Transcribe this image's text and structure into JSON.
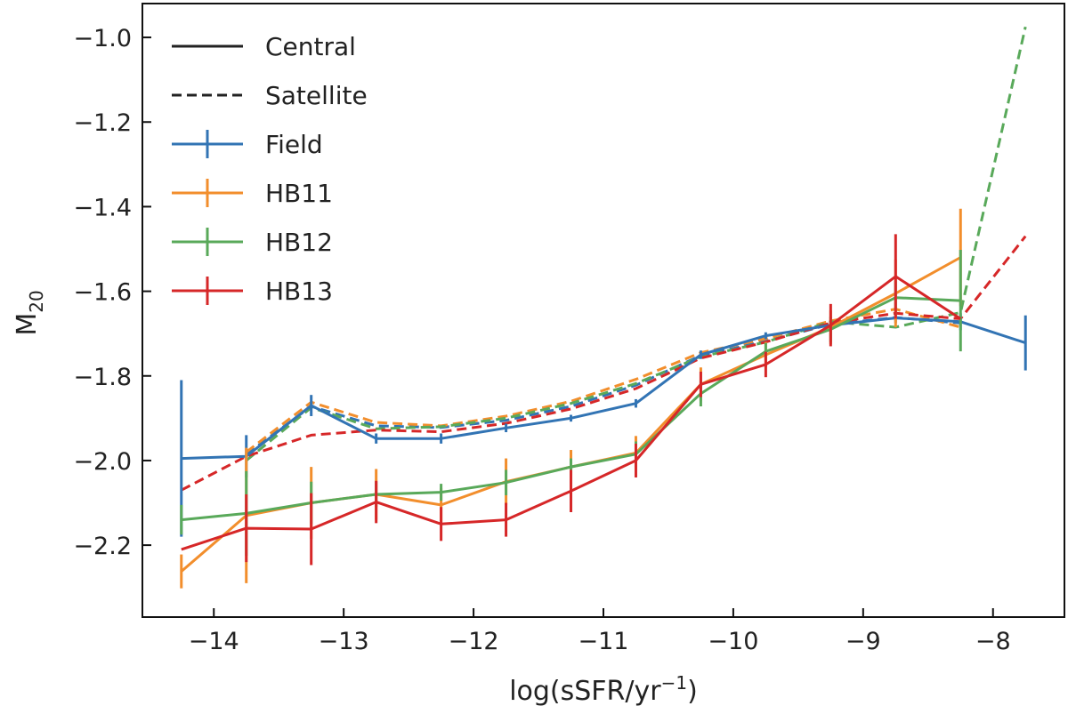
{
  "chart_data": {
    "type": "line",
    "title": "",
    "xlabel": "log(sSFR/yr",
    "xlabel_sup": "−1",
    "xlabel_close": ")",
    "ylabel": "M",
    "ylabel_sub": "20",
    "xlim": [
      -14.55,
      -7.45
    ],
    "ylim": [
      -2.37,
      -0.92
    ],
    "x_ticks": [
      -14,
      -13,
      -12,
      -11,
      -10,
      -9,
      -8
    ],
    "x_tick_labels": [
      "−14",
      "−13",
      "−12",
      "−11",
      "−10",
      "−9",
      "−8"
    ],
    "y_ticks": [
      -2.2,
      -2.0,
      -1.8,
      -1.6,
      -1.4,
      -1.2,
      -1.0
    ],
    "y_tick_labels": [
      "−2.2",
      "−2.0",
      "−1.8",
      "−1.6",
      "−1.4",
      "−1.2",
      "−1.0"
    ],
    "grid": false,
    "legend_position": "top-left",
    "legend": {
      "style_entries": [
        {
          "label": "Central",
          "style": "solid"
        },
        {
          "label": "Satellite",
          "style": "dashed"
        }
      ],
      "series_entries": [
        {
          "label": "Field",
          "color": "#3274b4"
        },
        {
          "label": "HB11",
          "color": "#f28e2c"
        },
        {
          "label": "HB12",
          "color": "#59a95a"
        },
        {
          "label": "HB13",
          "color": "#d62728"
        }
      ]
    },
    "series": [
      {
        "name": "Field",
        "kind": "central",
        "color": "#3274b4",
        "x": [
          -14.25,
          -13.75,
          -13.25,
          -12.75,
          -12.25,
          -11.75,
          -11.25,
          -10.75,
          -10.25,
          -9.75,
          -9.25,
          -8.75,
          -8.25,
          -7.75
        ],
        "y": [
          -1.995,
          -1.99,
          -1.87,
          -1.948,
          -1.948,
          -1.923,
          -1.9,
          -1.865,
          -1.75,
          -1.705,
          -1.68,
          -1.663,
          -1.672,
          -1.722
        ],
        "err": [
          0.185,
          0.05,
          0.025,
          0.012,
          0.012,
          0.01,
          0.008,
          0.01,
          0.01,
          0.008,
          0.01,
          0.012,
          0.02,
          0.065
        ]
      },
      {
        "name": "HB11",
        "kind": "central",
        "color": "#f28e2c",
        "x": [
          -14.25,
          -13.75,
          -13.25,
          -12.75,
          -12.25,
          -11.75,
          -11.25,
          -10.75,
          -10.25,
          -9.75,
          -9.25,
          -8.75,
          -8.25
        ],
        "y": [
          -2.262,
          -2.13,
          -2.1,
          -2.08,
          -2.105,
          -2.05,
          -2.015,
          -1.982,
          -1.82,
          -1.75,
          -1.685,
          -1.605,
          -1.52
        ],
        "err": [
          0.04,
          0.16,
          0.085,
          0.06,
          0.04,
          0.055,
          0.04,
          0.04,
          0.04,
          0.03,
          0.04,
          0.08,
          0.115
        ]
      },
      {
        "name": "HB12",
        "kind": "central",
        "color": "#59a95a",
        "x": [
          -14.25,
          -13.75,
          -13.25,
          -12.75,
          -12.25,
          -11.75,
          -11.25,
          -10.75,
          -10.25,
          -9.75,
          -9.25,
          -8.75,
          -8.25
        ],
        "y": [
          -2.14,
          -2.125,
          -2.1,
          -2.08,
          -2.075,
          -2.052,
          -2.015,
          -1.985,
          -1.842,
          -1.742,
          -1.69,
          -1.615,
          -1.622
        ],
        "err": [
          0.035,
          0.1,
          0.05,
          0.03,
          0.02,
          0.03,
          0.02,
          0.03,
          0.03,
          0.02,
          0.03,
          0.04,
          0.12
        ]
      },
      {
        "name": "HB13",
        "kind": "central",
        "color": "#d62728",
        "x": [
          -14.25,
          -13.75,
          -13.25,
          -12.75,
          -12.25,
          -11.75,
          -11.25,
          -10.75,
          -10.25,
          -9.75,
          -9.25,
          -8.75,
          -8.25
        ],
        "y": [
          -2.21,
          -2.16,
          -2.162,
          -2.098,
          -2.15,
          -2.14,
          -2.072,
          -2.0,
          -1.82,
          -1.773,
          -1.68,
          -1.565,
          -1.665
        ],
        "err": [
          0.0,
          0.08,
          0.085,
          0.05,
          0.04,
          0.04,
          0.05,
          0.04,
          0.03,
          0.03,
          0.05,
          0.1,
          0.0
        ]
      },
      {
        "name": "Field",
        "kind": "satellite",
        "color": "#3274b4",
        "x": [
          -13.75,
          -13.25,
          -12.75,
          -12.25,
          -11.75,
          -11.25,
          -10.75,
          -10.25,
          -9.75,
          -9.25,
          -8.75,
          -8.25
        ],
        "y": [
          -1.985,
          -1.872,
          -1.918,
          -1.922,
          -1.905,
          -1.872,
          -1.822,
          -1.752,
          -1.718,
          -1.678,
          -1.662,
          -1.675
        ]
      },
      {
        "name": "HB11",
        "kind": "satellite",
        "color": "#f28e2c",
        "x": [
          -13.75,
          -13.25,
          -12.75,
          -12.25,
          -11.75,
          -11.25,
          -10.75,
          -10.25,
          -9.75,
          -9.25,
          -8.75,
          -8.25
        ],
        "y": [
          -1.98,
          -1.862,
          -1.91,
          -1.918,
          -1.895,
          -1.86,
          -1.808,
          -1.745,
          -1.712,
          -1.67,
          -1.642,
          -1.685
        ]
      },
      {
        "name": "HB12",
        "kind": "satellite",
        "color": "#59a95a",
        "x": [
          -13.75,
          -13.25,
          -12.75,
          -12.25,
          -11.75,
          -11.25,
          -10.75,
          -10.25,
          -9.75,
          -9.25,
          -8.75,
          -8.25,
          -7.75
        ],
        "y": [
          -2.0,
          -1.875,
          -1.925,
          -1.92,
          -1.9,
          -1.865,
          -1.818,
          -1.755,
          -1.72,
          -1.672,
          -1.685,
          -1.65,
          -0.975
        ]
      },
      {
        "name": "HB13",
        "kind": "satellite",
        "color": "#d62728",
        "x": [
          -14.25,
          -13.75,
          -13.25,
          -12.75,
          -12.25,
          -11.75,
          -11.25,
          -10.75,
          -10.25,
          -9.75,
          -9.25,
          -8.75,
          -8.25,
          -7.75
        ],
        "y": [
          -2.07,
          -1.99,
          -1.94,
          -1.928,
          -1.932,
          -1.912,
          -1.878,
          -1.83,
          -1.758,
          -1.72,
          -1.675,
          -1.652,
          -1.665,
          -1.47
        ]
      }
    ]
  }
}
